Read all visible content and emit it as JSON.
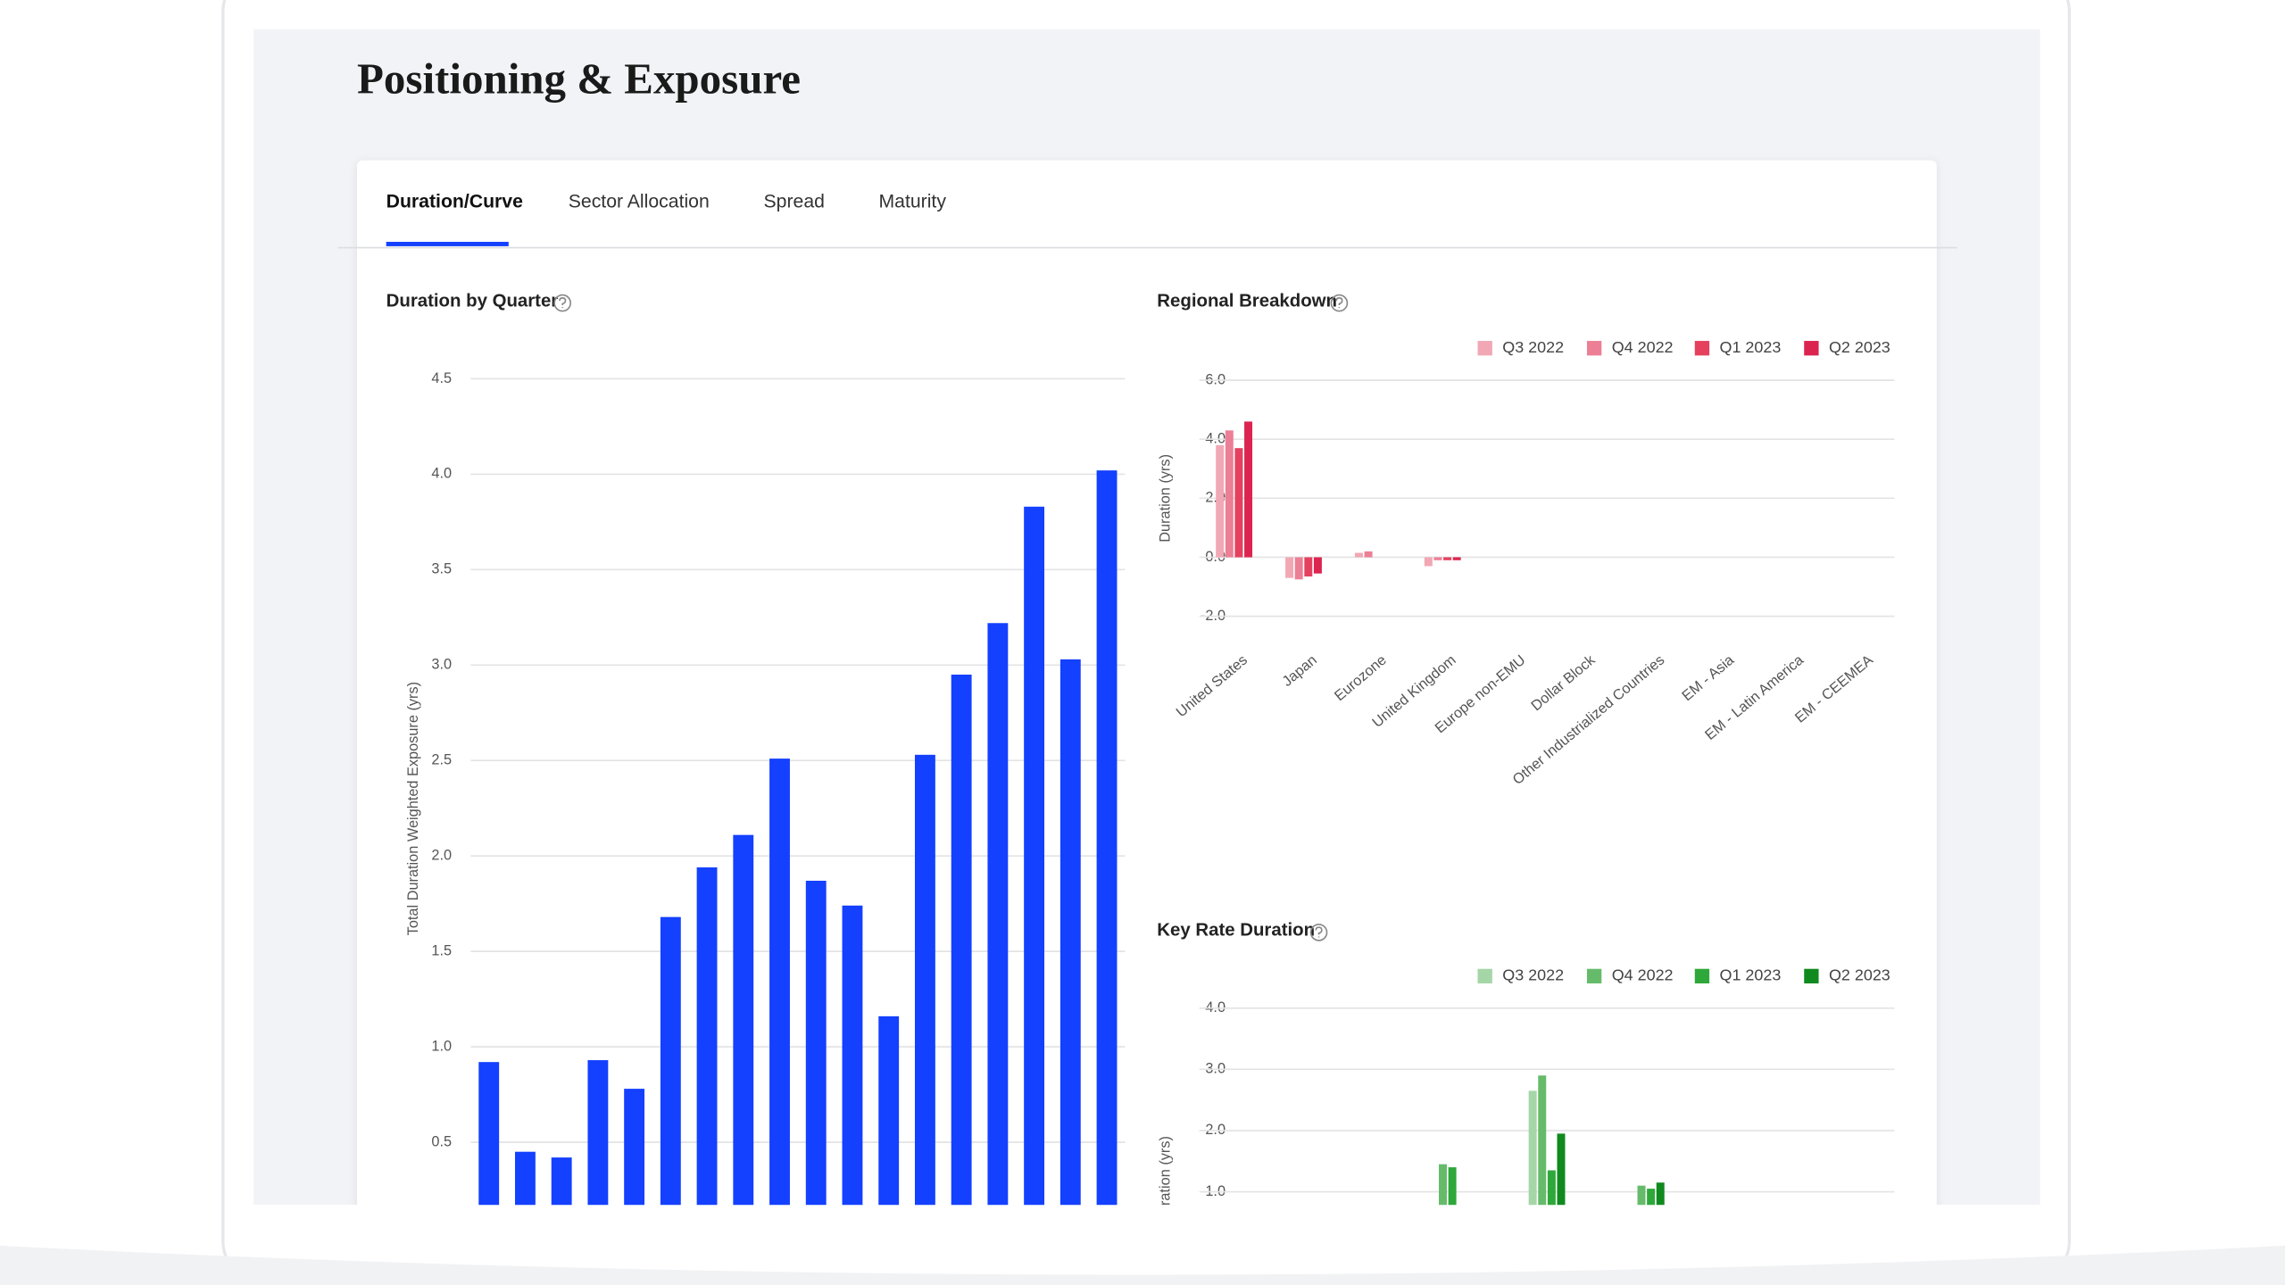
{
  "header": {
    "title": "Positioning & Exposure"
  },
  "tabs": [
    "Duration/Curve",
    "Sector Allocation",
    "Spread",
    "Maturity"
  ],
  "chart_data": [
    {
      "type": "bar",
      "title": "Duration by Quarter",
      "y_label": "Total Duration Weighted Exposure (yrs)",
      "values": [
        0.92,
        0.45,
        0.42,
        0.93,
        0.78,
        1.68,
        1.94,
        2.11,
        2.51,
        1.87,
        1.74,
        1.16,
        2.53,
        2.95,
        3.22,
        3.83,
        3.03,
        4.02
      ],
      "color": "#1440ff",
      "ylim": [
        0,
        4.5
      ],
      "yticks": [
        0.5,
        {
          "value": 1,
          "label": "1.0"
        },
        1.5,
        {
          "value": 2,
          "label": "2.0"
        },
        2.5,
        {
          "value": 3,
          "label": "3.0"
        },
        3.5,
        {
          "value": 4,
          "label": "4.0"
        },
        4.5
      ],
      "grid": true
    },
    {
      "type": "grouped_bar",
      "title": "Regional Breakdown",
      "y_label": "Duration (yrs)",
      "categories": [
        "United States",
        "Japan",
        "Eurozone",
        "United Kingdom",
        "Europe non-EMU",
        "Dollar Block",
        "Other Industrialized Countries",
        "EM - Asia",
        "EM - Latin America",
        "EM - CEEMEA"
      ],
      "series": [
        {
          "name": "Q3 2022",
          "color": "#f2a7b5",
          "values": [
            3.8,
            -0.7,
            0.15,
            -0.3,
            0,
            0,
            0,
            0,
            0,
            0
          ]
        },
        {
          "name": "Q4 2022",
          "color": "#ec7f95",
          "values": [
            4.3,
            -0.75,
            0.2,
            -0.1,
            0,
            0,
            0,
            0,
            0,
            0
          ]
        },
        {
          "name": "Q1 2023",
          "color": "#e6405f",
          "values": [
            3.7,
            -0.65,
            0,
            -0.1,
            0,
            0,
            0,
            0,
            0,
            0
          ]
        },
        {
          "name": "Q2 2023",
          "color": "#dc2450",
          "values": [
            4.6,
            -0.55,
            0,
            -0.1,
            0,
            0,
            0,
            0,
            0,
            0
          ]
        }
      ],
      "ylim": [
        -2,
        6
      ],
      "yticks": [
        {
          "value": -2,
          "label": "-2.0"
        },
        {
          "value": 0,
          "label": "0.0"
        },
        {
          "value": 2,
          "label": "2.0"
        },
        {
          "value": 4,
          "label": "4.0"
        },
        {
          "value": 6,
          "label": "6.0"
        }
      ],
      "grid": true
    },
    {
      "type": "grouped_bar",
      "title": "Key Rate Duration",
      "y_label": "Duration (yrs)",
      "categories": [
        null,
        null,
        null,
        null,
        null,
        null,
        null
      ],
      "series": [
        {
          "name": "Q3 2022",
          "color": "#a5d6a7",
          "values": [
            0,
            0,
            0,
            2.65,
            0,
            0,
            0
          ]
        },
        {
          "name": "Q4 2022",
          "color": "#66bb6a",
          "values": [
            0,
            0,
            1.45,
            2.9,
            1.1,
            0,
            0
          ]
        },
        {
          "name": "Q1 2023",
          "color": "#2ea83a",
          "values": [
            0,
            0,
            1.4,
            1.35,
            1.05,
            0,
            0
          ]
        },
        {
          "name": "Q2 2023",
          "color": "#108a1f",
          "values": [
            0,
            0,
            0,
            1.95,
            1.15,
            0,
            0
          ]
        }
      ],
      "ylim": [
        0,
        4
      ],
      "yticks": [
        {
          "value": 1,
          "label": "1.0"
        },
        {
          "value": 2,
          "label": "2.0"
        },
        {
          "value": 3,
          "label": "3.0"
        },
        {
          "value": 4,
          "label": "4.0"
        }
      ],
      "grid": true
    }
  ]
}
